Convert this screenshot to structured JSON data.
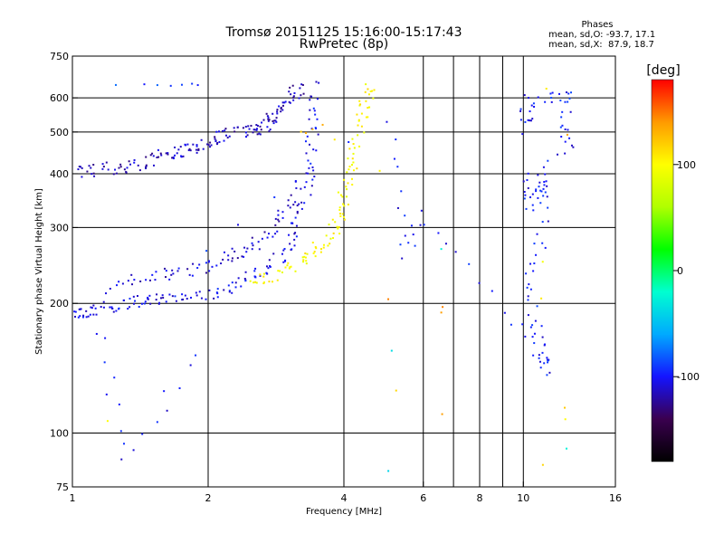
{
  "chart_data": {
    "type": "scatter",
    "title": "Tromsø 20151125 15:16:00-15:17:43",
    "subtitle": "RwPretec (8p)",
    "xlabel": "Frequency [MHz]",
    "ylabel": "Stationary phase Virtual Height [km]",
    "x_scale": "log",
    "y_scale": "log",
    "xlim": [
      1,
      16
    ],
    "ylim": [
      75,
      750
    ],
    "x_ticks": [
      1,
      2,
      4,
      6,
      8,
      10,
      16
    ],
    "x_tick_labels": [
      "1",
      "2",
      "4",
      "6",
      "8",
      "10",
      "16"
    ],
    "x_gridlines": [
      2,
      4,
      6,
      7,
      8,
      9,
      10
    ],
    "y_ticks": [
      75,
      100,
      200,
      300,
      400,
      500,
      600,
      750
    ],
    "y_tick_labels": [
      "75",
      "100",
      "200",
      "300",
      "400",
      "500",
      "600",
      "750"
    ],
    "y_gridlines": [
      100,
      200,
      300,
      400,
      500,
      600
    ],
    "grid": true,
    "stats": {
      "heading": "Phases",
      "line_o": "mean, sd,O: -93.7, 17.1",
      "line_x": "mean, sd,X:  87.9, 18.7"
    },
    "colorbar": {
      "label": "[deg]",
      "range": [
        -180,
        180
      ],
      "ticks": [
        100,
        0,
        -100
      ],
      "tick_labels": [
        "100",
        "0",
        "-100"
      ],
      "colormap": [
        "#000000",
        "#3a004f",
        "#1414ff",
        "#00aaff",
        "#00ffd0",
        "#00ff00",
        "#b0ff00",
        "#ffff00",
        "#ff9a00",
        "#ff0000"
      ]
    },
    "series": [
      {
        "phase": -105,
        "points": [
          [
            1.0,
            189
          ],
          [
            1.05,
            191
          ],
          [
            1.1,
            193
          ],
          [
            1.2,
            196
          ],
          [
            1.3,
            199
          ],
          [
            1.4,
            201
          ],
          [
            1.5,
            203
          ],
          [
            1.6,
            205
          ],
          [
            1.8,
            208
          ],
          [
            2.0,
            212
          ],
          [
            2.2,
            217
          ],
          [
            2.4,
            225
          ],
          [
            2.6,
            236
          ],
          [
            2.8,
            250
          ],
          [
            3.0,
            268
          ],
          [
            3.1,
            290
          ],
          [
            3.2,
            325
          ],
          [
            3.3,
            370
          ],
          [
            3.35,
            420
          ],
          [
            3.4,
            480
          ],
          [
            3.45,
            560
          ],
          [
            3.5,
            640
          ]
        ]
      },
      {
        "phase": -110,
        "points": [
          [
            1.2,
            218
          ],
          [
            1.4,
            228
          ],
          [
            1.6,
            235
          ],
          [
            1.8,
            238
          ],
          [
            2.0,
            245
          ],
          [
            2.2,
            258
          ],
          [
            2.4,
            265
          ],
          [
            2.6,
            280
          ],
          [
            2.8,
            300
          ],
          [
            3.0,
            330
          ],
          [
            3.2,
            380
          ]
        ]
      },
      {
        "phase": -115,
        "points": [
          [
            1.0,
            400
          ],
          [
            1.1,
            405
          ],
          [
            1.2,
            410
          ],
          [
            1.3,
            415
          ],
          [
            1.4,
            420
          ],
          [
            1.5,
            430
          ],
          [
            1.6,
            440
          ],
          [
            1.7,
            450
          ],
          [
            1.8,
            455
          ],
          [
            1.9,
            460
          ],
          [
            2.0,
            470
          ],
          [
            2.1,
            480
          ],
          [
            2.2,
            495
          ],
          [
            2.4,
            500
          ],
          [
            2.5,
            505
          ],
          [
            2.6,
            510
          ],
          [
            2.7,
            520
          ],
          [
            2.8,
            540
          ],
          [
            2.9,
            560
          ],
          [
            3.0,
            590
          ],
          [
            3.1,
            610
          ],
          [
            3.2,
            630
          ]
        ]
      },
      {
        "phase": -90,
        "points": [
          [
            1.25,
            640
          ],
          [
            1.45,
            645
          ],
          [
            1.55,
            645
          ],
          [
            1.65,
            640
          ],
          [
            1.75,
            643
          ],
          [
            1.85,
            645
          ],
          [
            1.9,
            640
          ]
        ]
      },
      {
        "phase": 100,
        "points": [
          [
            2.5,
            225
          ],
          [
            2.7,
            230
          ],
          [
            3.0,
            240
          ],
          [
            3.2,
            250
          ],
          [
            3.4,
            262
          ],
          [
            3.6,
            275
          ],
          [
            3.8,
            295
          ],
          [
            3.9,
            320
          ],
          [
            4.0,
            350
          ],
          [
            4.1,
            385
          ],
          [
            4.2,
            430
          ],
          [
            4.3,
            480
          ],
          [
            4.4,
            540
          ],
          [
            4.5,
            600
          ],
          [
            4.6,
            640
          ]
        ]
      },
      {
        "phase": 120,
        "points": [
          [
            3.2,
            500
          ],
          [
            3.3,
            495
          ],
          [
            3.4,
            505
          ],
          [
            3.6,
            520
          ],
          [
            3.8,
            480
          ]
        ]
      },
      {
        "phase": -100,
        "points": [
          [
            10.1,
            600
          ],
          [
            10.1,
            510
          ],
          [
            11.0,
            600
          ],
          [
            12.5,
            610
          ],
          [
            12.5,
            530
          ],
          [
            12.5,
            460
          ],
          [
            10.2,
            380
          ],
          [
            10.2,
            335
          ],
          [
            11.1,
            385
          ],
          [
            11.1,
            365
          ],
          [
            11.0,
            275
          ],
          [
            10.2,
            215
          ],
          [
            10.6,
            175
          ],
          [
            11.2,
            150
          ],
          [
            11.2,
            140
          ],
          [
            9.7,
            180
          ],
          [
            6.1,
            320
          ],
          [
            5.4,
            260
          ],
          [
            5.0,
            530
          ],
          [
            1.15,
            175
          ],
          [
            1.3,
            88
          ],
          [
            1.9,
            150
          ]
        ]
      },
      {
        "phase": 110,
        "points": [
          [
            11.0,
            250
          ],
          [
            11.0,
            205
          ],
          [
            11.2,
            630
          ],
          [
            12.4,
            115
          ],
          [
            12.4,
            108
          ],
          [
            11.1,
            84
          ],
          [
            5.2,
            125
          ],
          [
            4.8,
            405
          ],
          [
            1.2,
            107
          ]
        ]
      },
      {
        "phase": 150,
        "points": [
          [
            6.6,
            197
          ],
          [
            6.6,
            190
          ],
          [
            6.6,
            111
          ],
          [
            5.0,
            205
          ],
          [
            12.5,
            495
          ]
        ]
      },
      {
        "phase": -40,
        "points": [
          [
            12.5,
            92
          ],
          [
            5.0,
            82
          ],
          [
            5.1,
            155
          ],
          [
            6.6,
            268
          ]
        ]
      }
    ]
  }
}
